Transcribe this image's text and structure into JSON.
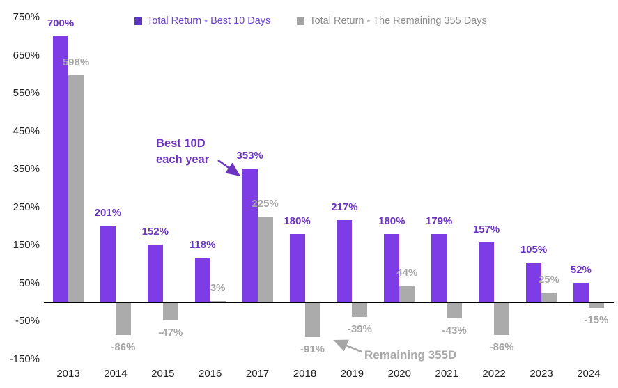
{
  "chart_data": {
    "type": "bar",
    "title": "",
    "categories": [
      "2013",
      "2014",
      "2015",
      "2016",
      "2017",
      "2018",
      "2019",
      "2020",
      "2021",
      "2022",
      "2023",
      "2024"
    ],
    "series": [
      {
        "name": "Total Return - Best 10 Days",
        "color": "#7D3CE6",
        "label_color": "#6C34C0",
        "values": [
          700,
          201,
          152,
          118,
          353,
          180,
          217,
          180,
          179,
          157,
          105,
          52
        ]
      },
      {
        "name": "Total Return - The Remaining 355 Days",
        "color": "#ABABAB",
        "label_color": "#A6A6A6",
        "values": [
          598,
          -86,
          -47,
          3,
          225,
          -91,
          -39,
          44,
          -43,
          -86,
          25,
          -15
        ]
      }
    ],
    "value_suffix": "%",
    "xlabel": "",
    "ylabel": "",
    "ylim": [
      -150,
      750
    ],
    "yticks": [
      750,
      650,
      550,
      450,
      350,
      250,
      150,
      50,
      -50,
      -150
    ],
    "ytick_suffix": "%",
    "grid": false,
    "legend_position": "top"
  },
  "legend": {
    "items": [
      {
        "label": "Total Return - Best 10 Days",
        "marker_color": "#5D35C1",
        "text_color": "#6E46C8"
      },
      {
        "label": "Total Return - The Remaining 355 Days",
        "marker_color": "#A3A3A3",
        "text_color": "#8C8C8C"
      }
    ]
  },
  "annotations": {
    "best10d_line1": "Best 10D",
    "best10d_line2": "each year",
    "remaining": "Remaining 355D"
  },
  "colors": {
    "purple_bar": "#7D3CE6",
    "purple_text": "#6C34C0",
    "gray_bar": "#ABABAB",
    "gray_text": "#A6A6A6",
    "axis_text": "#1F1F1F",
    "axis_line": "#000000"
  }
}
